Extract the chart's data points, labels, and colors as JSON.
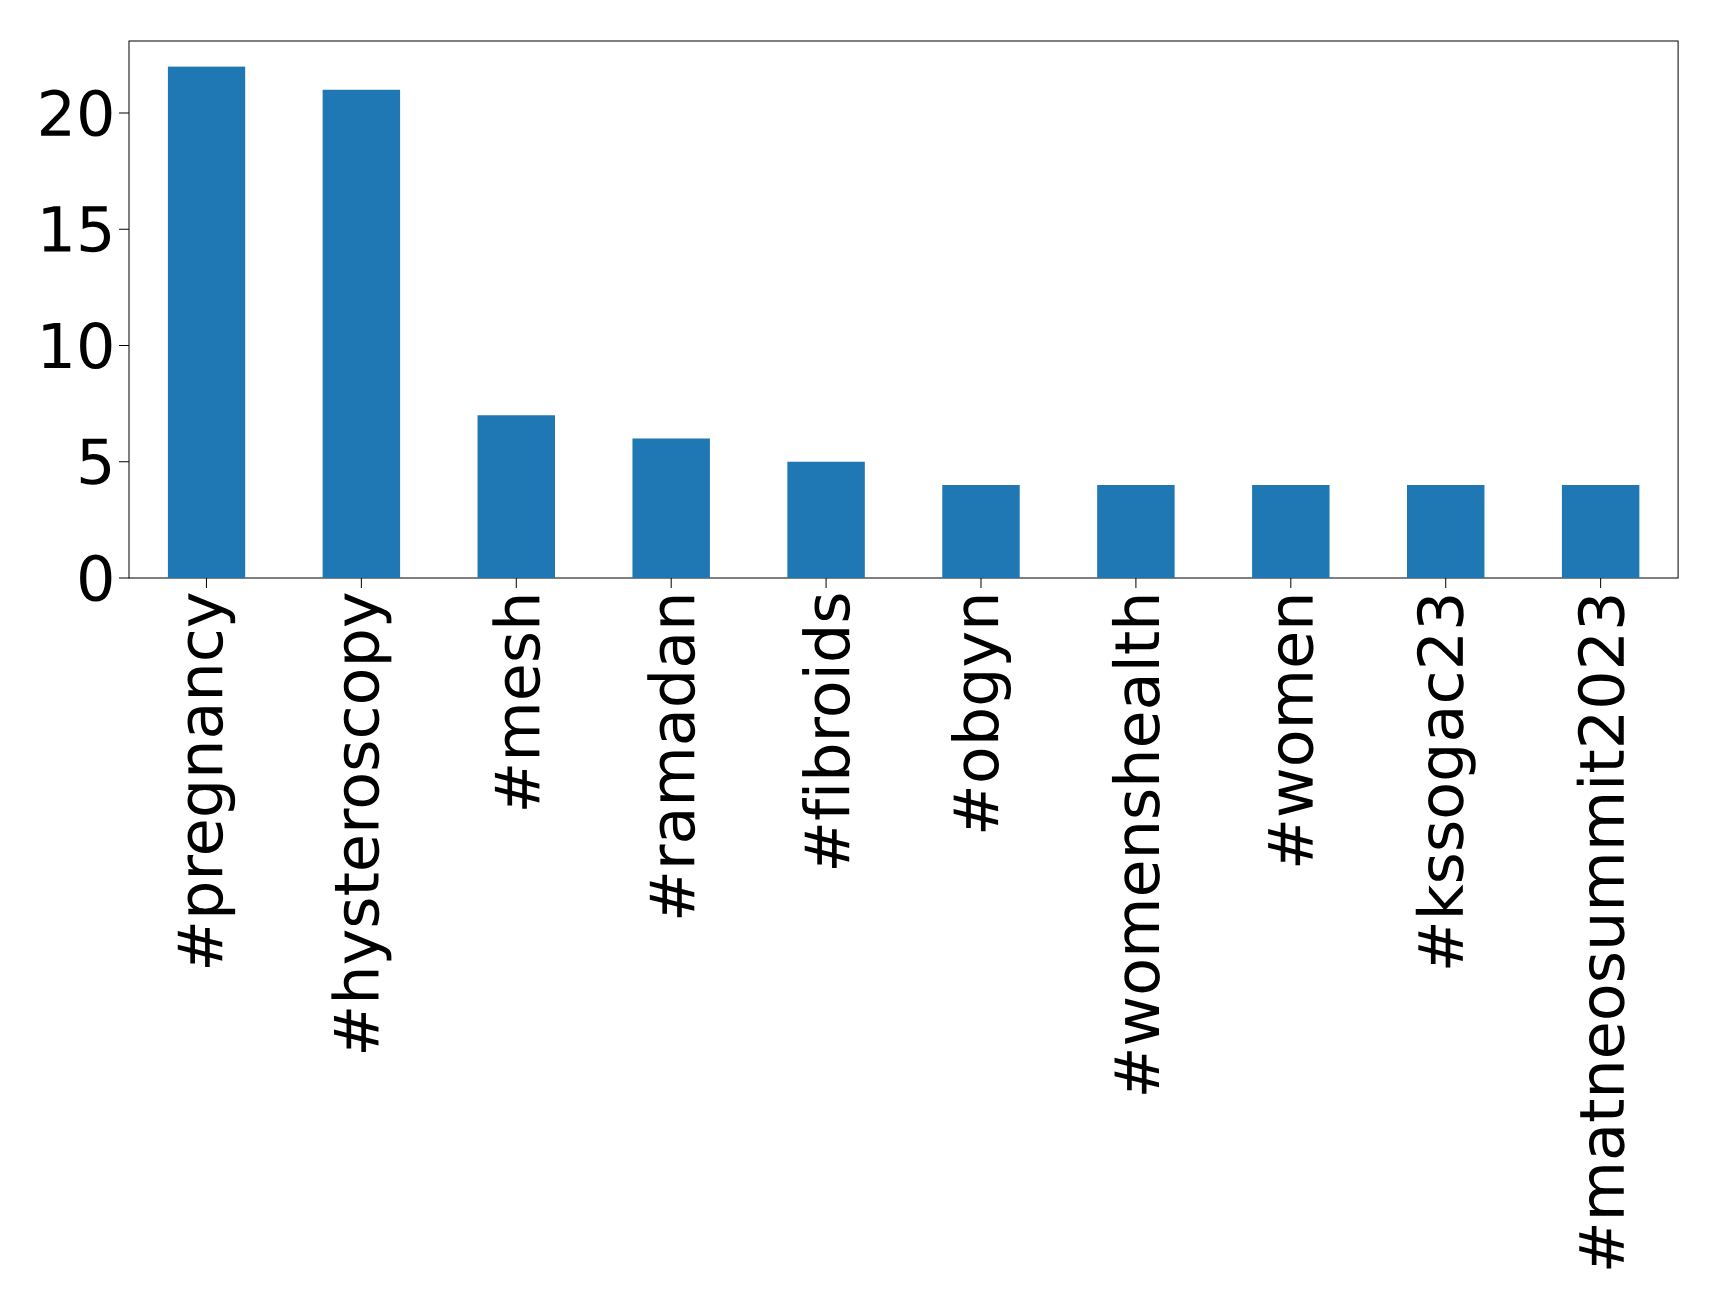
{
  "chart_data": {
    "type": "bar",
    "categories": [
      "#pregnancy",
      "#hysteroscopy",
      "#mesh",
      "#ramadan",
      "#fibroids",
      "#obgyn",
      "#womenshealth",
      "#women",
      "#kssogac23",
      "#matneosummit2023"
    ],
    "values": [
      22,
      21,
      7,
      6,
      5,
      4,
      4,
      4,
      4,
      4
    ],
    "color": "#1f77b4",
    "ylim": [
      0,
      23.1
    ],
    "yticks": [
      0,
      5,
      10,
      15,
      20
    ],
    "grid": false
  }
}
